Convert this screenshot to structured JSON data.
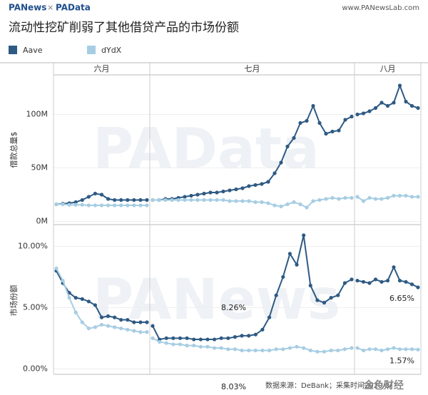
{
  "header": {
    "logo_left": "PANews",
    "separator": "×",
    "logo_right": "PAData",
    "url": "www.PANewsLab.com"
  },
  "footer": {
    "source": "数据来源：DeBank；采集时间2020/8/",
    "watermark": "金色财经"
  },
  "chart_data": {
    "type": "line",
    "title": "流动性挖矿削弱了其他借贷产品的市场份额",
    "months": [
      "六月",
      "七月",
      "八月"
    ],
    "series": [
      {
        "name": "Aave",
        "color": "#2e5a84"
      },
      {
        "name": "dYdX",
        "color": "#a6cde3"
      }
    ],
    "panels": [
      {
        "ylabel": "借款总量$",
        "watermark": "PAData",
        "ylim": [
          -3000000,
          137000000
        ],
        "yticks": [
          {
            "value": 0,
            "label": "0M"
          },
          {
            "value": 50000000,
            "label": "50M"
          },
          {
            "value": 100000000,
            "label": "100M"
          }
        ],
        "series": [
          {
            "values": [
              [
                16000000,
                16500000,
                17000000,
                18000000,
                20000000,
                23000000,
                26000000,
                25000000,
                21000000,
                20000000,
                20000000,
                20000000,
                20000000,
                20000000,
                20000000
              ],
              [
                20000000,
                20000000,
                21000000,
                21000000,
                22000000,
                23000000,
                24000000,
                25000000,
                26000000,
                27000000,
                27000000,
                28000000,
                29000000,
                30000000,
                31000000,
                33000000,
                34000000,
                35000000,
                37000000,
                45000000,
                55000000,
                70000000,
                78000000,
                92000000,
                94000000,
                108000000,
                92000000,
                82000000,
                84000000,
                85000000,
                95000000,
                98000000
              ],
              [
                100000000,
                101000000,
                103000000,
                106000000,
                111000000,
                108000000,
                111000000,
                127000000,
                112000000,
                108000000,
                106000000
              ]
            ]
          },
          {
            "values": [
              [
                16000000,
                16000000,
                15500000,
                15500000,
                15500000,
                15000000,
                15000000,
                15000000,
                15000000,
                15000000,
                15000000,
                15000000,
                15000000,
                15000000,
                15000000
              ],
              [
                20000000,
                20000000,
                20000000,
                20000000,
                20000000,
                20000000,
                20000000,
                20000000,
                20000000,
                20000000,
                20000000,
                20000000,
                19000000,
                19000000,
                19000000,
                19000000,
                18000000,
                18000000,
                17000000,
                15000000,
                14000000,
                16000000,
                18000000,
                16000000,
                13000000,
                19000000,
                20000000,
                21000000,
                22000000,
                21000000,
                22000000,
                22000000
              ],
              [
                23000000,
                19000000,
                22000000,
                21000000,
                21000000,
                22000000,
                24000000,
                24000000,
                24000000,
                23000000,
                23000000
              ]
            ]
          }
        ]
      },
      {
        "ylabel": "市场份额",
        "watermark": "PANews",
        "ylim": [
          -0.45,
          11.6
        ],
        "yticks": [
          {
            "value": 0,
            "label": "0.00%"
          },
          {
            "value": 5,
            "label": "5.00%"
          },
          {
            "value": 10,
            "label": "10.00%"
          }
        ],
        "annotations": [
          "8.26%",
          "8.03%",
          "6.65%",
          "1.57%"
        ],
        "series": [
          {
            "values": [
              [
                8.0,
                7.0,
                6.2,
                5.8,
                5.7,
                5.5,
                5.2,
                4.2,
                4.3,
                4.2,
                4.0,
                4.0,
                3.8,
                3.8,
                3.8
              ],
              [
                3.5,
                2.4,
                2.5,
                2.5,
                2.5,
                2.5,
                2.4,
                2.4,
                2.4,
                2.4,
                2.5,
                2.5,
                2.6,
                2.7,
                2.7,
                2.8,
                3.2,
                4.2,
                6.0,
                7.5,
                9.4,
                8.5,
                10.9,
                6.8,
                5.6,
                5.4,
                5.8,
                6.0,
                7.0,
                7.3
              ],
              [
                7.2,
                7.1,
                7.0,
                7.3,
                7.1,
                7.2,
                8.3,
                7.2,
                7.1,
                6.9,
                6.65
              ]
            ]
          },
          {
            "values": [
              [
                8.2,
                7.2,
                5.8,
                4.6,
                3.8,
                3.3,
                3.4,
                3.6,
                3.5,
                3.4,
                3.3,
                3.2,
                3.1,
                3.0,
                3.0
              ],
              [
                2.5,
                2.2,
                2.1,
                2.0,
                2.0,
                1.9,
                1.9,
                1.8,
                1.8,
                1.7,
                1.7,
                1.6,
                1.6,
                1.5,
                1.5,
                1.5,
                1.5,
                1.5,
                1.6,
                1.6,
                1.7,
                1.8,
                1.7,
                1.5,
                1.4,
                1.4,
                1.5,
                1.5,
                1.6,
                1.7
              ],
              [
                1.7,
                1.5,
                1.6,
                1.6,
                1.5,
                1.6,
                1.7,
                1.6,
                1.6,
                1.6,
                1.57
              ]
            ]
          }
        ]
      }
    ]
  }
}
